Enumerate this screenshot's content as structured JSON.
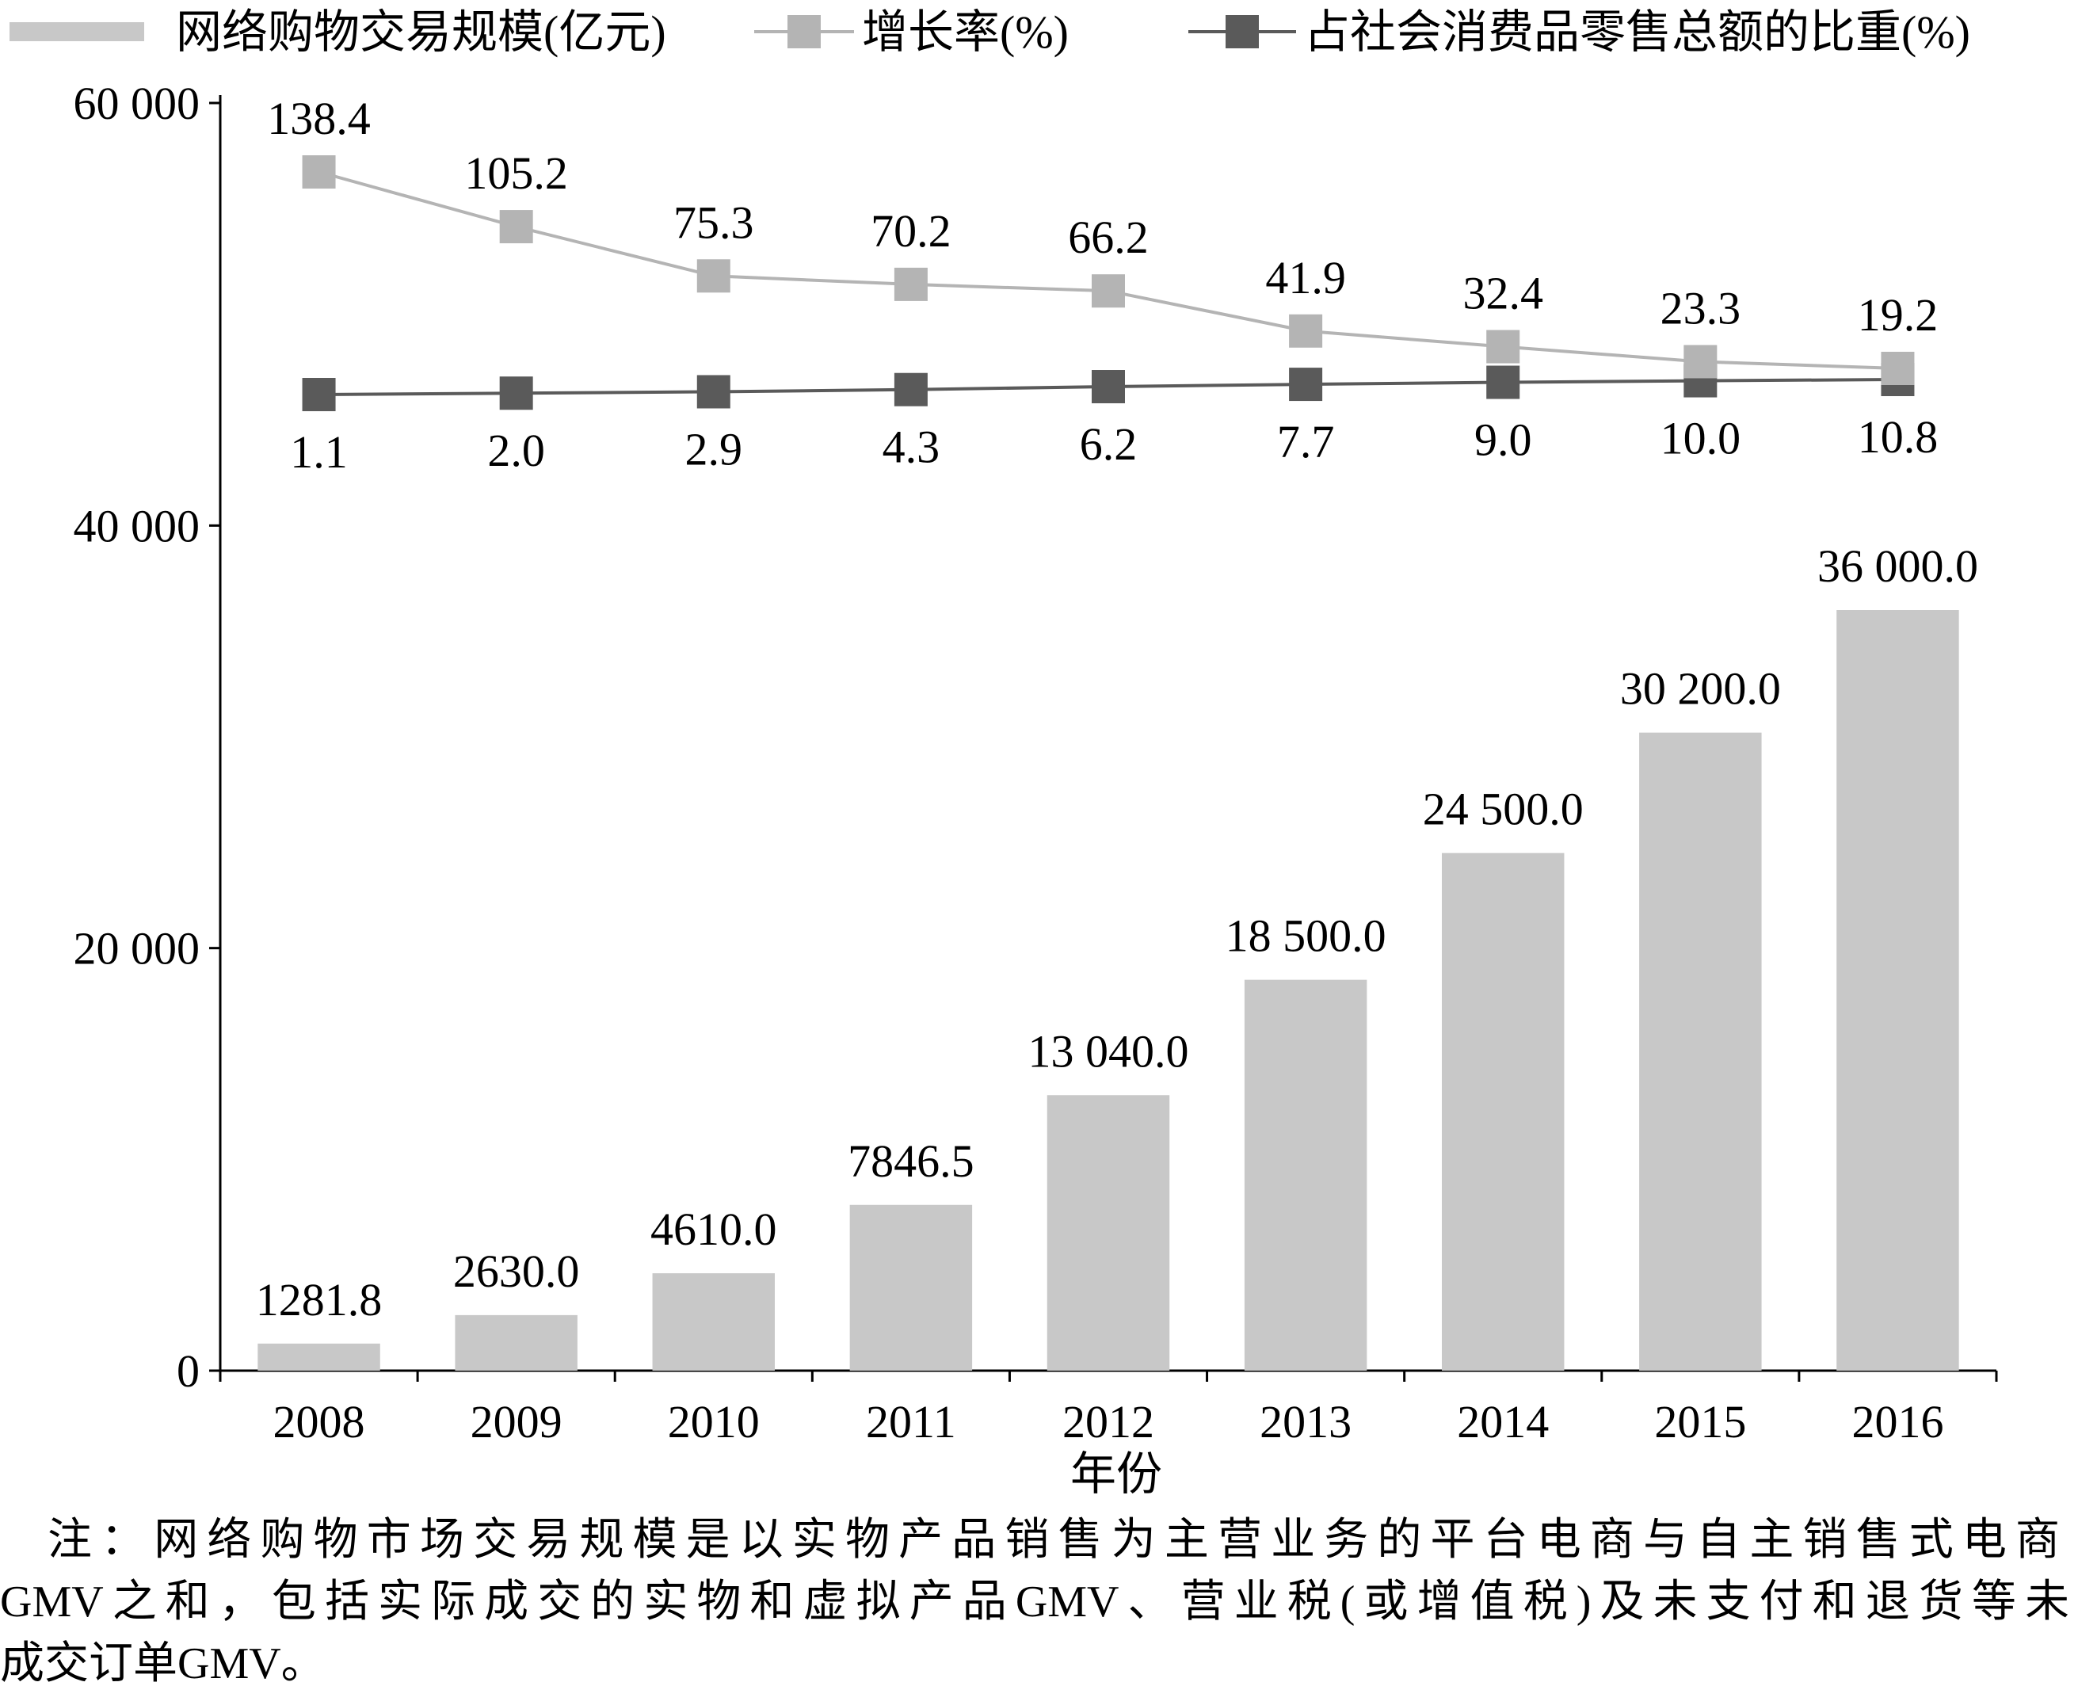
{
  "chart_data": {
    "type": "bar+line",
    "categories": [
      "2008",
      "2009",
      "2010",
      "2011",
      "2012",
      "2013",
      "2014",
      "2015",
      "2016"
    ],
    "xlabel": "年份",
    "ylim": [
      0,
      60000
    ],
    "yticks": [
      0,
      20000,
      40000,
      60000
    ],
    "ytick_labels": [
      "0",
      "20 000",
      "40 000",
      "60 000"
    ],
    "grid": false,
    "legend_position": "top",
    "series": [
      {
        "name": "网络购物交易规模(亿元)",
        "kind": "bar",
        "values": [
          1281.8,
          2630.0,
          4610.0,
          7846.5,
          13040.0,
          18500.0,
          24500.0,
          30200.0,
          36000.0
        ],
        "labels": [
          "1281.8",
          "2630.0",
          "4610.0",
          "7846.5",
          "13 040.0",
          "18 500.0",
          "24 500.0",
          "30 200.0",
          "36 000.0"
        ],
        "color": "#c8c8c8"
      },
      {
        "name": "增长率(%)",
        "kind": "line",
        "values": [
          138.4,
          105.2,
          75.3,
          70.2,
          66.2,
          41.9,
          32.4,
          23.3,
          19.2
        ],
        "labels": [
          "138.4",
          "105.2",
          "75.3",
          "70.2",
          "66.2",
          "41.9",
          "32.4",
          "23.3",
          "19.2"
        ],
        "color": "#b4b4b4"
      },
      {
        "name": "占社会消费品零售总额的比重(%)",
        "kind": "line",
        "values": [
          1.1,
          2.0,
          2.9,
          4.3,
          6.2,
          7.7,
          9.0,
          10.0,
          10.8
        ],
        "labels": [
          "1.1",
          "2.0",
          "2.9",
          "4.3",
          "6.2",
          "7.7",
          "9.0",
          "10.0",
          "10.8"
        ],
        "color": "#5a5a5a"
      }
    ]
  },
  "note": {
    "line1": "注：网络购物市场交易规模是以实物产品销售为主营业务的平台电商与自主销售式电商",
    "line2": "GMV之和，包括实际成交的实物和虚拟产品GMV、营业税(或增值税)及未支付和退货等未",
    "line3": "成交订单GMV。"
  }
}
